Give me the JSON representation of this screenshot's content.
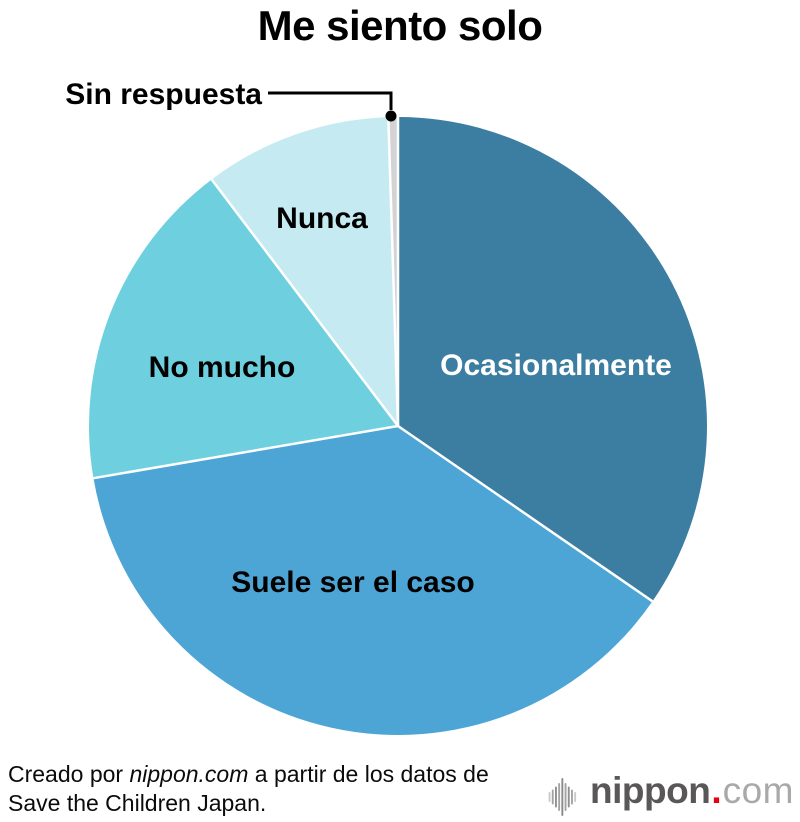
{
  "title": {
    "text": "Me siento solo",
    "color": "#000000"
  },
  "chart_data": {
    "type": "pie",
    "title": "Me siento solo",
    "unit": "percent",
    "direction": "clockwise",
    "start_angle_deg": 0,
    "values_labeled_on_chart": false,
    "legend": "none",
    "separator_color": "#ffffff",
    "segments": [
      {
        "label": "Ocasionalmente",
        "value": 34.6,
        "color": "#3c7da2",
        "label_color": "#ffffff",
        "label_position": "inside"
      },
      {
        "label": "Suele ser el caso",
        "value": 37.7,
        "color": "#4da5d6",
        "label_color": "#000000",
        "label_position": "inside"
      },
      {
        "label": "No mucho",
        "value": 17.4,
        "color": "#6ecfdf",
        "label_color": "#000000",
        "label_position": "inside"
      },
      {
        "label": "Nunca",
        "value": 9.8,
        "color": "#c5eaf2",
        "label_color": "#000000",
        "label_position": "inside"
      },
      {
        "label": "Sin respuesta",
        "value": 0.5,
        "color": "#d3d3d5",
        "label_color": "#000000",
        "label_position": "outside-callout"
      }
    ]
  },
  "footer": {
    "credit_prefix": "Creado por ",
    "credit_brand": "nippon.com",
    "credit_suffix": " a partir de los datos de",
    "credit_line2": "Save the Children Japan.",
    "color": "#0b0b0b"
  },
  "logo": {
    "icon": "soundwave-bars-icon",
    "name_bold": "nippon",
    "dot": ".",
    "name_light": "com",
    "bold_color": "#595757",
    "dot_color": "#e60012",
    "light_color": "#a9a9a9"
  }
}
